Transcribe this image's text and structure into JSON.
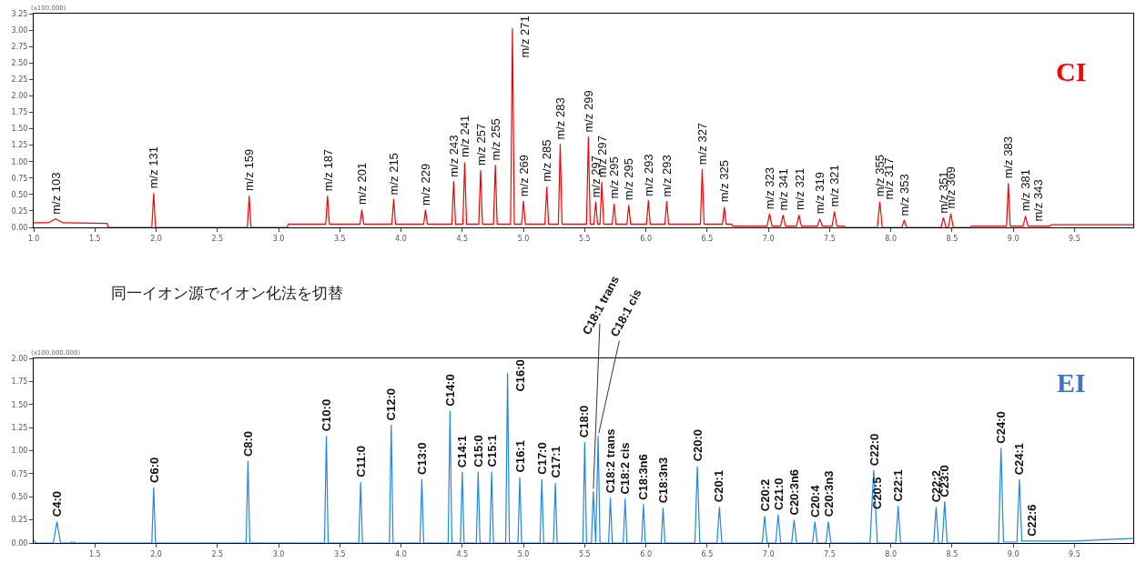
{
  "chart_data": [
    {
      "type": "line",
      "title": "CI",
      "ylabel": "(x100,000)",
      "xlim": [
        1.0,
        9.98
      ],
      "xticks": [
        {
          "value": 1.0,
          "label": "1.0"
        },
        {
          "value": 1.5,
          "label": "1.5"
        },
        {
          "value": 2.0,
          "label": "2.0"
        },
        {
          "value": 2.5,
          "label": "2.5"
        },
        {
          "value": 3.0,
          "label": "3.0"
        },
        {
          "value": 3.5,
          "label": "3.5"
        },
        {
          "value": 4.0,
          "label": "4.0"
        },
        {
          "value": 4.5,
          "label": "4.5"
        },
        {
          "value": 5.0,
          "label": "5.0"
        },
        {
          "value": 5.5,
          "label": "5.5"
        },
        {
          "value": 6.0,
          "label": "6.0"
        },
        {
          "value": 6.5,
          "label": "6.5"
        },
        {
          "value": 7.0,
          "label": "7.0"
        },
        {
          "value": 7.5,
          "label": "7.5"
        },
        {
          "value": 8.0,
          "label": "8.0"
        },
        {
          "value": 8.5,
          "label": "8.5"
        },
        {
          "value": 9.0,
          "label": "9.0"
        },
        {
          "value": 9.5,
          "label": "9.5"
        }
      ],
      "ylim": [
        0,
        3.25
      ],
      "yticks": [
        {
          "value": 0,
          "label": "0.00"
        },
        {
          "value": 0.25,
          "label": "0.25"
        },
        {
          "value": 0.5,
          "label": "0.50"
        },
        {
          "value": 0.75,
          "label": "0.75"
        },
        {
          "value": 1.0,
          "label": "1.00"
        },
        {
          "value": 1.25,
          "label": "1.25"
        },
        {
          "value": 1.5,
          "label": "1.50"
        },
        {
          "value": 1.75,
          "label": "1.75"
        },
        {
          "value": 2.0,
          "label": "2.00"
        },
        {
          "value": 2.25,
          "label": "2.25"
        },
        {
          "value": 2.5,
          "label": "2.50"
        },
        {
          "value": 2.75,
          "label": "2.75"
        },
        {
          "value": 3.0,
          "label": "3.00"
        },
        {
          "value": 3.25,
          "label": "3.25"
        }
      ],
      "series": [
        {
          "color": "#ff0000",
          "x": [
            1.0,
            1.12,
            1.18,
            1.24,
            1.6,
            1.61,
            1.965,
            1.98,
            1.995,
            2.745,
            2.76,
            2.775,
            3.07,
            3.08,
            3.385,
            3.4,
            3.415,
            3.665,
            3.68,
            3.695,
            3.925,
            3.94,
            3.955,
            4.185,
            4.2,
            4.215,
            4.415,
            4.43,
            4.445,
            4.505,
            4.52,
            4.535,
            4.635,
            4.65,
            4.665,
            4.755,
            4.77,
            4.785,
            4.895,
            4.91,
            4.925,
            4.985,
            5.0,
            5.015,
            5.175,
            5.19,
            5.205,
            5.285,
            5.3,
            5.315,
            5.515,
            5.53,
            5.545,
            5.575,
            5.59,
            5.605,
            5.625,
            5.64,
            5.655,
            5.725,
            5.74,
            5.755,
            5.845,
            5.86,
            5.875,
            6.005,
            6.02,
            6.035,
            6.155,
            6.17,
            6.185,
            6.445,
            6.46,
            6.475,
            6.625,
            6.64,
            6.655,
            6.7,
            6.71,
            6.99,
            7.01,
            7.03,
            7.1,
            7.12,
            7.14,
            7.23,
            7.25,
            7.27,
            7.4,
            7.42,
            7.44,
            7.52,
            7.54,
            7.56,
            7.62,
            7.63,
            7.89,
            7.91,
            7.93,
            8.09,
            8.11,
            8.13,
            8.41,
            8.43,
            8.45,
            8.47,
            8.49,
            8.51,
            8.65,
            8.66,
            8.945,
            8.96,
            8.975,
            9.08,
            9.1,
            9.12,
            9.3,
            9.31,
            9.98
          ],
          "values": [
            0.07,
            0.07,
            0.13,
            0.07,
            0.06,
            0,
            0,
            0.52,
            0,
            0,
            0.48,
            0,
            0,
            0.05,
            0.05,
            0.48,
            0.05,
            0.05,
            0.27,
            0.05,
            0.05,
            0.43,
            0.05,
            0.05,
            0.27,
            0.05,
            0.05,
            0.7,
            0.05,
            0.05,
            0.99,
            0.05,
            0.05,
            0.87,
            0.05,
            0.05,
            0.95,
            0.05,
            0.05,
            3.03,
            0.05,
            0.05,
            0.4,
            0.05,
            0.05,
            0.62,
            0.05,
            0.05,
            1.27,
            0.05,
            0.05,
            1.38,
            0.05,
            0.05,
            0.39,
            0.05,
            0.05,
            0.69,
            0.05,
            0.05,
            0.36,
            0.05,
            0.05,
            0.34,
            0.05,
            0.05,
            0.41,
            0.05,
            0.05,
            0.4,
            0.05,
            0.05,
            0.89,
            0.05,
            0.05,
            0.31,
            0.05,
            0.05,
            0.02,
            0.02,
            0.21,
            0.02,
            0.02,
            0.19,
            0.02,
            0.02,
            0.19,
            0.02,
            0.02,
            0.13,
            0.02,
            0.02,
            0.24,
            0.02,
            0.02,
            0,
            0,
            0.39,
            0,
            0,
            0.11,
            0,
            0,
            0.15,
            0,
            0,
            0.21,
            0,
            0,
            0.02,
            0.02,
            0.67,
            0.02,
            0.02,
            0.17,
            0.02,
            0.02,
            0.04,
            0.04
          ]
        }
      ],
      "annotations": [
        {
          "text": "m/z 103",
          "x": 1.18,
          "y": 0.13
        },
        {
          "text": "m/z 131",
          "x": 1.98,
          "y": 0.52
        },
        {
          "text": "m/z 159",
          "x": 2.76,
          "y": 0.48
        },
        {
          "text": "m/z 187",
          "x": 3.4,
          "y": 0.48
        },
        {
          "text": "m/z 201",
          "x": 3.68,
          "y": 0.27
        },
        {
          "text": "m/z 215",
          "x": 3.94,
          "y": 0.43
        },
        {
          "text": "m/z 229",
          "x": 4.2,
          "y": 0.27
        },
        {
          "text": "m/z 243",
          "x": 4.43,
          "y": 0.7
        },
        {
          "text": "m/z 241",
          "x": 4.52,
          "y": 0.99
        },
        {
          "text": "m/z 257",
          "x": 4.65,
          "y": 0.87
        },
        {
          "text": "m/z 255",
          "x": 4.77,
          "y": 0.95
        },
        {
          "text": "m/z 271",
          "x": 4.91,
          "y": 3.03
        },
        {
          "text": "m/z 269",
          "x": 5.0,
          "y": 0.4
        },
        {
          "text": "m/z 285",
          "x": 5.19,
          "y": 0.62
        },
        {
          "text": "m/z 283",
          "x": 5.3,
          "y": 1.27
        },
        {
          "text": "m/z 299",
          "x": 5.53,
          "y": 1.38
        },
        {
          "text": "m/z 297",
          "x": 5.59,
          "y": 0.39
        },
        {
          "text": "m/z 297",
          "x": 5.64,
          "y": 0.69
        },
        {
          "text": "m/z 295",
          "x": 5.74,
          "y": 0.36
        },
        {
          "text": "m/z 295",
          "x": 5.86,
          "y": 0.34
        },
        {
          "text": "m/z 293",
          "x": 6.02,
          "y": 0.41
        },
        {
          "text": "m/z 293",
          "x": 6.17,
          "y": 0.4
        },
        {
          "text": "m/z 327",
          "x": 6.46,
          "y": 0.89
        },
        {
          "text": "m/z 325",
          "x": 6.64,
          "y": 0.31
        },
        {
          "text": "m/z 323",
          "x": 7.01,
          "y": 0.21
        },
        {
          "text": "m/z 341",
          "x": 7.12,
          "y": 0.19
        },
        {
          "text": "m/z 321",
          "x": 7.25,
          "y": 0.19
        },
        {
          "text": "m/z 319",
          "x": 7.42,
          "y": 0.13
        },
        {
          "text": "m/z 321",
          "x": 7.54,
          "y": 0.24
        },
        {
          "text": "m/z 355",
          "x": 7.91,
          "y": 0.39
        },
        "m/z 317",
        {
          "text": "m/z 353",
          "x": 8.11,
          "y": 0.11
        },
        {
          "text": "m/z 351",
          "x": 8.43,
          "y": 0.15
        },
        {
          "text": "m/z 369",
          "x": 8.49,
          "y": 0.21
        },
        {
          "text": "m/z 383",
          "x": 8.96,
          "y": 0.67
        },
        {
          "text": "m/z 381",
          "x": 9.1,
          "y": 0.17
        },
        {
          "text": "m/z 343",
          "x": 9.2,
          "y": 0.02
        },
        "同一イオン源でイオン化法を切替"
      ]
    },
    {
      "type": "line",
      "title": "EI",
      "ylabel": "(x100,000,000)",
      "xlim": [
        1.0,
        9.98
      ],
      "xticks": [
        {
          "value": 1.5,
          "label": "1.5"
        },
        {
          "value": 2.0,
          "label": "2.0"
        },
        {
          "value": 2.5,
          "label": "2.5"
        },
        {
          "value": 3.0,
          "label": "3.0"
        },
        {
          "value": 3.5,
          "label": "3.5"
        },
        {
          "value": 4.0,
          "label": "4.0"
        },
        {
          "value": 4.5,
          "label": "4.5"
        },
        {
          "value": 5.0,
          "label": "5.0"
        },
        {
          "value": 5.5,
          "label": "5.5"
        },
        {
          "value": 6.0,
          "label": "6.0"
        },
        {
          "value": 6.5,
          "label": "6.5"
        },
        {
          "value": 7.0,
          "label": "7.0"
        },
        {
          "value": 7.5,
          "label": "7.5"
        },
        {
          "value": 8.0,
          "label": "8.0"
        },
        {
          "value": 8.5,
          "label": "8.5"
        },
        {
          "value": 9.0,
          "label": "9.0"
        },
        {
          "value": 9.5,
          "label": "9.5"
        }
      ],
      "ylim": [
        0,
        2.0
      ],
      "yticks": [
        {
          "value": 0,
          "label": "0.00"
        },
        {
          "value": 0.25,
          "label": "0.25"
        },
        {
          "value": 0.5,
          "label": "0.50"
        },
        {
          "value": 0.75,
          "label": "0.75"
        },
        {
          "value": 1.0,
          "label": "1.00"
        },
        {
          "value": 1.25,
          "label": "1.25"
        },
        {
          "value": 1.5,
          "label": "1.50"
        },
        {
          "value": 1.75,
          "label": "1.75"
        },
        {
          "value": 2.0,
          "label": "2.00"
        }
      ],
      "series": [
        {
          "color": "#1e88e5",
          "x": [
            1.0,
            1.02,
            1.16,
            1.19,
            1.22,
            1.3,
            1.31,
            1.33,
            1.34,
            1.965,
            1.98,
            1.995,
            2.735,
            2.75,
            2.765,
            3.375,
            3.39,
            3.405,
            3.655,
            3.67,
            3.685,
            3.905,
            3.92,
            3.935,
            4.155,
            4.17,
            4.185,
            4.385,
            4.4,
            4.415,
            4.485,
            4.5,
            4.515,
            4.615,
            4.63,
            4.645,
            4.725,
            4.74,
            4.755,
            4.855,
            4.87,
            4.885,
            4.955,
            4.97,
            4.985,
            5.135,
            5.15,
            5.165,
            5.245,
            5.26,
            5.275,
            5.485,
            5.5,
            5.515,
            5.555,
            5.57,
            5.59,
            5.61,
            5.625,
            5.695,
            5.71,
            5.725,
            5.815,
            5.83,
            5.845,
            5.965,
            5.98,
            5.995,
            6.125,
            6.14,
            6.155,
            6.4,
            6.42,
            6.44,
            6.58,
            6.6,
            6.62,
            6.95,
            6.97,
            6.99,
            7.06,
            7.08,
            7.1,
            7.19,
            7.21,
            7.23,
            7.36,
            7.38,
            7.4,
            7.47,
            7.49,
            7.51,
            7.83,
            7.86,
            7.89,
            8.04,
            8.06,
            8.08,
            8.35,
            8.37,
            8.39,
            8.42,
            8.44,
            8.46,
            8.88,
            8.9,
            8.92,
            9.03,
            9.05,
            9.07,
            9.5,
            9.98
          ],
          "values": [
            0.03,
            0,
            0,
            0.23,
            0,
            0,
            0.01,
            0.01,
            0,
            0,
            0.6,
            0,
            0,
            0.89,
            0,
            0,
            1.16,
            0,
            0,
            0.66,
            0,
            0,
            1.28,
            0,
            0,
            0.69,
            0,
            0,
            1.43,
            0,
            0,
            0.77,
            0,
            0,
            0.77,
            0,
            0,
            0.77,
            0,
            0,
            1.84,
            0,
            0,
            0.71,
            0,
            0,
            0.69,
            0,
            0,
            0.65,
            0,
            0,
            1.09,
            0,
            0,
            0.56,
            0,
            1.16,
            0,
            0,
            0.49,
            0,
            0,
            0.48,
            0,
            0,
            0.42,
            0,
            0,
            0.38,
            0,
            0,
            0.83,
            0,
            0,
            0.39,
            0,
            0,
            0.29,
            0,
            0,
            0.31,
            0,
            0,
            0.25,
            0,
            0,
            0.23,
            0,
            0,
            0.23,
            0,
            0,
            0.79,
            0,
            0,
            0.4,
            0,
            0,
            0.39,
            0,
            0,
            0.45,
            0,
            0,
            1.03,
            0.01,
            0.01,
            0.69,
            0.02,
            0.02,
            0.05
          ]
        }
      ],
      "annotations": [
        {
          "text": "C4:0",
          "x": 1.19,
          "y": 0.23
        },
        {
          "text": "C6:0",
          "x": 1.98,
          "y": 0.6
        },
        {
          "text": "C8:0",
          "x": 2.75,
          "y": 0.89
        },
        {
          "text": "C10:0",
          "x": 3.39,
          "y": 1.16
        },
        {
          "text": "C11:0",
          "x": 3.67,
          "y": 0.66
        },
        {
          "text": "C12:0",
          "x": 3.92,
          "y": 1.28
        },
        {
          "text": "C13:0",
          "x": 4.17,
          "y": 0.69
        },
        {
          "text": "C14:0",
          "x": 4.4,
          "y": 1.43
        },
        {
          "text": "C14:1",
          "x": 4.5,
          "y": 0.77
        },
        {
          "text": "C15:0",
          "x": 4.63,
          "y": 0.77
        },
        {
          "text": "C15:1",
          "x": 4.74,
          "y": 0.77
        },
        {
          "text": "C16:0",
          "x": 4.87,
          "y": 1.84
        },
        {
          "text": "C16:1",
          "x": 4.97,
          "y": 0.71
        },
        {
          "text": "C17:0",
          "x": 5.15,
          "y": 0.69
        },
        {
          "text": "C17:1",
          "x": 5.26,
          "y": 0.65
        },
        {
          "text": "C18:0",
          "x": 5.5,
          "y": 1.09
        },
        {
          "text": "C18:1 trans",
          "x": 5.57,
          "y": 0.56
        },
        {
          "text": "C18:1 cis",
          "x": 5.61,
          "y": 1.16
        },
        {
          "text": "C18:2 trans",
          "x": 5.71,
          "y": 0.49
        },
        {
          "text": "C18:2 cis",
          "x": 5.83,
          "y": 0.48
        },
        {
          "text": "C18:3n6",
          "x": 5.98,
          "y": 0.42
        },
        {
          "text": "C18:3n3",
          "x": 6.14,
          "y": 0.38
        },
        {
          "text": "C20:0",
          "x": 6.42,
          "y": 0.83
        },
        {
          "text": "C20:1",
          "x": 6.6,
          "y": 0.39
        },
        {
          "text": "C20:2",
          "x": 6.97,
          "y": 0.29
        },
        {
          "text": "C21:0",
          "x": 7.08,
          "y": 0.31
        },
        {
          "text": "C20:3n6",
          "x": 7.21,
          "y": 0.25
        },
        {
          "text": "C20:4",
          "x": 7.38,
          "y": 0.23
        },
        {
          "text": "C20:3n3",
          "x": 7.49,
          "y": 0.23
        },
        {
          "text": "C22:0",
          "x": 7.86,
          "y": 0.79
        },
        "C20:5",
        {
          "text": "C22:1",
          "x": 8.06,
          "y": 0.4
        },
        {
          "text": "C22:2",
          "x": 8.37,
          "y": 0.39
        },
        {
          "text": "C23:0",
          "x": 8.44,
          "y": 0.45
        },
        {
          "text": "C24:0",
          "x": 8.9,
          "y": 1.03
        },
        {
          "text": "C24:1",
          "x": 9.05,
          "y": 0.69
        },
        {
          "text": "C22:6",
          "x": 9.15,
          "y": 0.02
        }
      ]
    }
  ]
}
